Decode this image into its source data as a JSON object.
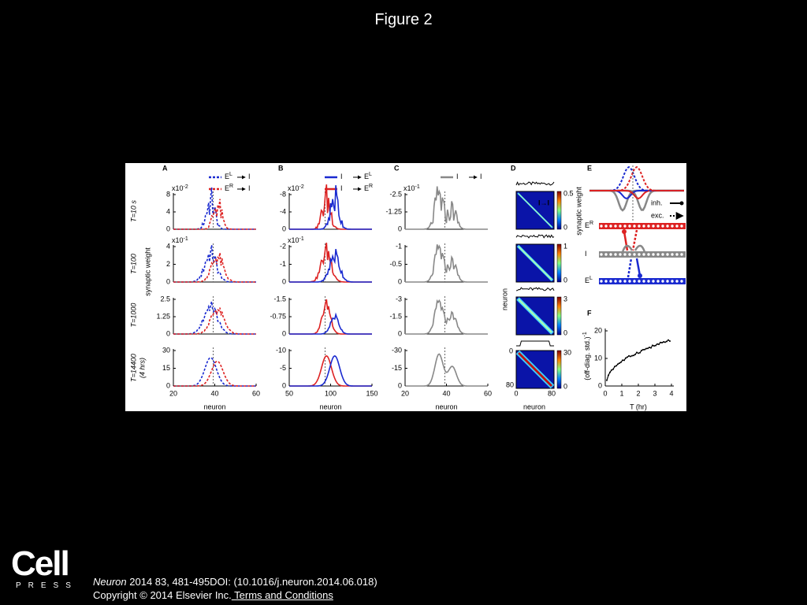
{
  "header": {
    "title": "Figure 2"
  },
  "figure": {
    "row_labels": [
      "T=10 s",
      "T=100",
      "T=1000",
      "T=14400",
      "(4 hrs)"
    ],
    "y_label": "synaptic weight",
    "panels": [
      {
        "label": "A",
        "legend": [
          {
            "base": "E",
            "sup": "L",
            "target": "I"
          },
          {
            "base": "E",
            "sup": "R",
            "target": "I"
          }
        ],
        "rows": [
          {
            "scale": {
              "base": "x10",
              "exp": "-2"
            },
            "yticks": [
              8,
              4,
              0
            ]
          },
          {
            "scale": {
              "base": "x10",
              "exp": "-1"
            },
            "yticks": [
              4,
              2,
              0
            ]
          },
          {
            "yticks": [
              2.5,
              1.25,
              0
            ]
          },
          {
            "yticks": [
              30,
              15,
              0
            ]
          }
        ],
        "xticks": [
          20,
          40,
          60
        ],
        "xlabel": "neuron"
      },
      {
        "label": "B",
        "legend": [
          {
            "base": "I",
            "target": "E",
            "sup": "L"
          },
          {
            "base": "I",
            "target": "E",
            "sup": "R"
          }
        ],
        "rows": [
          {
            "scale": {
              "base": "x10",
              "exp": "-2"
            },
            "yticks": [
              -8,
              -4,
              0
            ]
          },
          {
            "scale": {
              "base": "x10",
              "exp": "-1"
            },
            "yticks": [
              -2,
              -1,
              0
            ]
          },
          {
            "yticks": [
              -1.5,
              -0.75,
              0
            ]
          },
          {
            "yticks": [
              -10,
              -5,
              0
            ]
          }
        ],
        "xticks": [
          50,
          100,
          150
        ],
        "xlabel": "neuron"
      },
      {
        "label": "C",
        "legend": [
          {
            "base": "I",
            "target": "I"
          }
        ],
        "rows": [
          {
            "scale": {
              "base": "x10",
              "exp": "-1"
            },
            "yticks": [
              -2.5,
              -1.25,
              0
            ]
          },
          {
            "yticks": [
              -1,
              -0.5,
              0
            ]
          },
          {
            "yticks": [
              -3,
              -1.5,
              0
            ]
          },
          {
            "yticks": [
              -30,
              -15,
              0
            ]
          }
        ],
        "xticks": [
          20,
          40,
          60
        ],
        "xlabel": "neuron"
      }
    ],
    "panel_d": {
      "label": "D",
      "inset": "I→I",
      "colorbar_label": "synaptic weight",
      "colorbar_ticks": [
        [
          0.5,
          0
        ],
        [
          1,
          0
        ],
        [
          3,
          0
        ],
        [
          30,
          0
        ]
      ],
      "ylabel": "neuron",
      "yticks": [
        0,
        80
      ],
      "xticks": [
        0,
        80
      ],
      "xlabel": "neuron"
    },
    "panel_e": {
      "label": "E",
      "inh": "inh.",
      "exc": "exc.",
      "rows": [
        {
          "base": "E",
          "sup": "R"
        },
        {
          "base": "I"
        },
        {
          "base": "E",
          "sup": "L"
        }
      ]
    },
    "panel_f": {
      "label": "F",
      "ylabel": "(off-diag. std.)",
      "ylabel_sup": "-1",
      "yticks": [
        0,
        10,
        20
      ],
      "xticks": [
        0,
        1,
        2,
        3,
        4
      ],
      "xlabel": "T (hr)"
    }
  },
  "footer": {
    "logo": "Cell",
    "logo_sub": "PRESS",
    "journal": "Neuron",
    "citation": " 2014 83, 481-495DOI: (10.1016/j.neuron.2014.06.018)",
    "copyright": "Copyright © 2014 Elsevier Inc.",
    "link": " Terms and Conditions"
  }
}
